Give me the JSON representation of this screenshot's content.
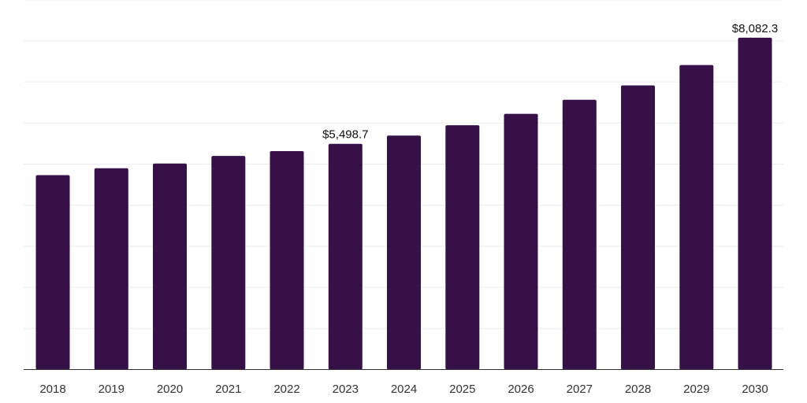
{
  "chart_data": {
    "type": "bar",
    "title": "",
    "xlabel": "",
    "ylabel": "",
    "categories": [
      "2018",
      "2019",
      "2020",
      "2021",
      "2022",
      "2023",
      "2024",
      "2025",
      "2026",
      "2027",
      "2028",
      "2029",
      "2030"
    ],
    "values": [
      4735,
      4903,
      5018,
      5203,
      5319,
      5498.7,
      5697,
      5950,
      6229,
      6572,
      6921,
      7417,
      8082.3
    ],
    "data_labels": [
      {
        "category": "2023",
        "text": "$5,498.7"
      },
      {
        "category": "2030",
        "text": "$8,082.3"
      }
    ],
    "ylim": [
      0,
      9000
    ],
    "grid": true,
    "legend": "none",
    "colors": {
      "bar": "#361148",
      "grid": "#ececec",
      "axis": "#333333"
    }
  }
}
